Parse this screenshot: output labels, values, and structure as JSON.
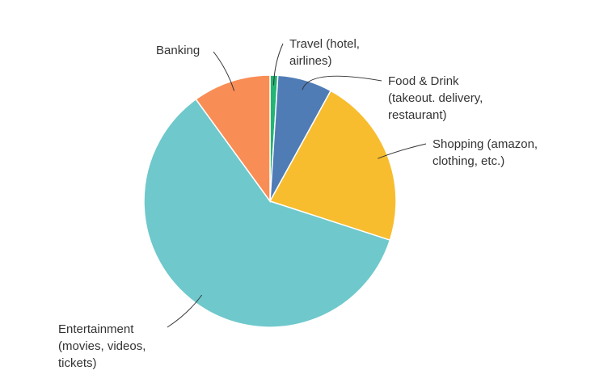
{
  "chart_data": {
    "type": "pie",
    "categories": [
      "Travel (hotel, airlines)",
      "Food & Drink (takeout. delivery, restaurant)",
      "Shopping (amazon, clothing, etc.)",
      "Entertainment (movies, videos, tickets)",
      "Banking"
    ],
    "values": [
      1,
      7,
      22,
      60,
      10
    ],
    "colors": [
      "#22b573",
      "#507cb6",
      "#f7bd2f",
      "#6fc8cc",
      "#f98d56"
    ]
  }
}
